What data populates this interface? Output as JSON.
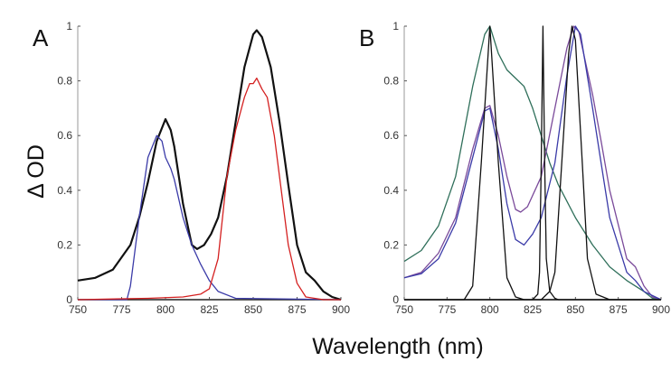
{
  "chart_data": {
    "xlabel": "Wavelength (nm)",
    "ylabel": "Δ OD",
    "panels": [
      {
        "label": "A",
        "type": "line",
        "xlim": [
          750,
          900
        ],
        "ylim": [
          0,
          1
        ],
        "xticks": [
          "750",
          "775",
          "800",
          "825",
          "850",
          "875",
          "900"
        ],
        "yticks": [
          "0",
          "0.2",
          "0.4",
          "0.6",
          "0.8",
          "1"
        ],
        "grid": false,
        "series": [
          {
            "color": "#111111",
            "points": [
              [
                750,
                0.07
              ],
              [
                760,
                0.08
              ],
              [
                770,
                0.11
              ],
              [
                780,
                0.2
              ],
              [
                785,
                0.3
              ],
              [
                790,
                0.43
              ],
              [
                795,
                0.58
              ],
              [
                800,
                0.66
              ],
              [
                803,
                0.62
              ],
              [
                805,
                0.56
              ],
              [
                810,
                0.35
              ],
              [
                815,
                0.2
              ],
              [
                818,
                0.185
              ],
              [
                822,
                0.2
              ],
              [
                826,
                0.24
              ],
              [
                830,
                0.3
              ],
              [
                835,
                0.45
              ],
              [
                840,
                0.65
              ],
              [
                845,
                0.85
              ],
              [
                850,
                0.97
              ],
              [
                852,
                0.985
              ],
              [
                855,
                0.96
              ],
              [
                860,
                0.85
              ],
              [
                865,
                0.65
              ],
              [
                870,
                0.42
              ],
              [
                875,
                0.2
              ],
              [
                880,
                0.1
              ],
              [
                885,
                0.07
              ],
              [
                890,
                0.03
              ],
              [
                895,
                0.01
              ],
              [
                900,
                0
              ]
            ]
          },
          {
            "color": "#3b3ba8",
            "points": [
              [
                750,
                0
              ],
              [
                778,
                0
              ],
              [
                780,
                0.05
              ],
              [
                785,
                0.3
              ],
              [
                790,
                0.52
              ],
              [
                795,
                0.6
              ],
              [
                798,
                0.58
              ],
              [
                800,
                0.52
              ],
              [
                803,
                0.48
              ],
              [
                805,
                0.44
              ],
              [
                810,
                0.3
              ],
              [
                815,
                0.2
              ],
              [
                820,
                0.13
              ],
              [
                825,
                0.07
              ],
              [
                830,
                0.03
              ],
              [
                840,
                0.005
              ],
              [
                900,
                0
              ]
            ]
          },
          {
            "color": "#d42020",
            "points": [
              [
                750,
                0
              ],
              [
                790,
                0.005
              ],
              [
                810,
                0.01
              ],
              [
                820,
                0.02
              ],
              [
                825,
                0.04
              ],
              [
                830,
                0.15
              ],
              [
                835,
                0.45
              ],
              [
                840,
                0.62
              ],
              [
                845,
                0.74
              ],
              [
                848,
                0.79
              ],
              [
                850,
                0.79
              ],
              [
                852,
                0.81
              ],
              [
                855,
                0.77
              ],
              [
                858,
                0.74
              ],
              [
                862,
                0.6
              ],
              [
                865,
                0.45
              ],
              [
                870,
                0.2
              ],
              [
                875,
                0.06
              ],
              [
                880,
                0.01
              ],
              [
                890,
                0
              ],
              [
                900,
                0
              ]
            ]
          }
        ]
      },
      {
        "label": "B",
        "type": "line",
        "xlim": [
          750,
          900
        ],
        "ylim": [
          0,
          1
        ],
        "xticks": [
          "750",
          "775",
          "800",
          "825",
          "850",
          "875",
          "900"
        ],
        "yticks": [
          "0",
          "0.2",
          "0.4",
          "0.6",
          "0.8",
          "1"
        ],
        "grid": false,
        "series": [
          {
            "color": "#2f6f5a",
            "points": [
              [
                750,
                0.14
              ],
              [
                760,
                0.18
              ],
              [
                770,
                0.27
              ],
              [
                780,
                0.45
              ],
              [
                790,
                0.78
              ],
              [
                797,
                0.97
              ],
              [
                800,
                1.0
              ],
              [
                805,
                0.9
              ],
              [
                810,
                0.84
              ],
              [
                815,
                0.81
              ],
              [
                820,
                0.78
              ],
              [
                825,
                0.7
              ],
              [
                830,
                0.6
              ],
              [
                835,
                0.5
              ],
              [
                840,
                0.42
              ],
              [
                850,
                0.3
              ],
              [
                860,
                0.2
              ],
              [
                870,
                0.12
              ],
              [
                880,
                0.07
              ],
              [
                890,
                0.03
              ],
              [
                895,
                0.005
              ],
              [
                900,
                0
              ]
            ]
          },
          {
            "color": "#7a4a9a",
            "points": [
              [
                750,
                0.08
              ],
              [
                760,
                0.1
              ],
              [
                770,
                0.17
              ],
              [
                780,
                0.3
              ],
              [
                790,
                0.55
              ],
              [
                797,
                0.7
              ],
              [
                800,
                0.71
              ],
              [
                805,
                0.6
              ],
              [
                810,
                0.45
              ],
              [
                815,
                0.33
              ],
              [
                818,
                0.32
              ],
              [
                822,
                0.34
              ],
              [
                830,
                0.45
              ],
              [
                838,
                0.7
              ],
              [
                845,
                0.92
              ],
              [
                849,
                1.0
              ],
              [
                852,
                0.98
              ],
              [
                860,
                0.75
              ],
              [
                865,
                0.58
              ],
              [
                870,
                0.4
              ],
              [
                880,
                0.15
              ],
              [
                885,
                0.12
              ],
              [
                890,
                0.05
              ],
              [
                895,
                0.01
              ],
              [
                900,
                0
              ]
            ]
          },
          {
            "color": "#3b3ba8",
            "points": [
              [
                750,
                0.08
              ],
              [
                760,
                0.095
              ],
              [
                770,
                0.15
              ],
              [
                780,
                0.28
              ],
              [
                790,
                0.52
              ],
              [
                797,
                0.69
              ],
              [
                800,
                0.7
              ],
              [
                805,
                0.55
              ],
              [
                810,
                0.35
              ],
              [
                815,
                0.22
              ],
              [
                820,
                0.2
              ],
              [
                825,
                0.24
              ],
              [
                830,
                0.3
              ],
              [
                838,
                0.5
              ],
              [
                845,
                0.82
              ],
              [
                850,
                1.0
              ],
              [
                853,
                0.97
              ],
              [
                860,
                0.7
              ],
              [
                865,
                0.5
              ],
              [
                870,
                0.3
              ],
              [
                880,
                0.1
              ],
              [
                885,
                0.07
              ],
              [
                890,
                0.03
              ],
              [
                900,
                0
              ]
            ]
          },
          {
            "color": "#111111",
            "points": [
              [
                750,
                0
              ],
              [
                785,
                0
              ],
              [
                790,
                0.05
              ],
              [
                795,
                0.5
              ],
              [
                800,
                1.0
              ],
              [
                805,
                0.5
              ],
              [
                810,
                0.08
              ],
              [
                815,
                0.01
              ],
              [
                820,
                0
              ],
              [
                900,
                0
              ]
            ]
          },
          {
            "color": "#111111",
            "points": [
              [
                750,
                0
              ],
              [
                825,
                0
              ],
              [
                828,
                0.02
              ],
              [
                829,
                0.1
              ],
              [
                830,
                0.5
              ],
              [
                831,
                1.0
              ],
              [
                832,
                0.5
              ],
              [
                833,
                0.15
              ],
              [
                835,
                0.03
              ],
              [
                838,
                0.005
              ],
              [
                840,
                0
              ],
              [
                900,
                0
              ]
            ]
          },
          {
            "color": "#111111",
            "points": [
              [
                750,
                0
              ],
              [
                830,
                0
              ],
              [
                835,
                0.03
              ],
              [
                838,
                0.1
              ],
              [
                842,
                0.5
              ],
              [
                846,
                0.9
              ],
              [
                848,
                1.0
              ],
              [
                850,
                0.95
              ],
              [
                854,
                0.5
              ],
              [
                857,
                0.15
              ],
              [
                862,
                0.02
              ],
              [
                870,
                0
              ],
              [
                900,
                0
              ]
            ]
          }
        ]
      }
    ]
  }
}
